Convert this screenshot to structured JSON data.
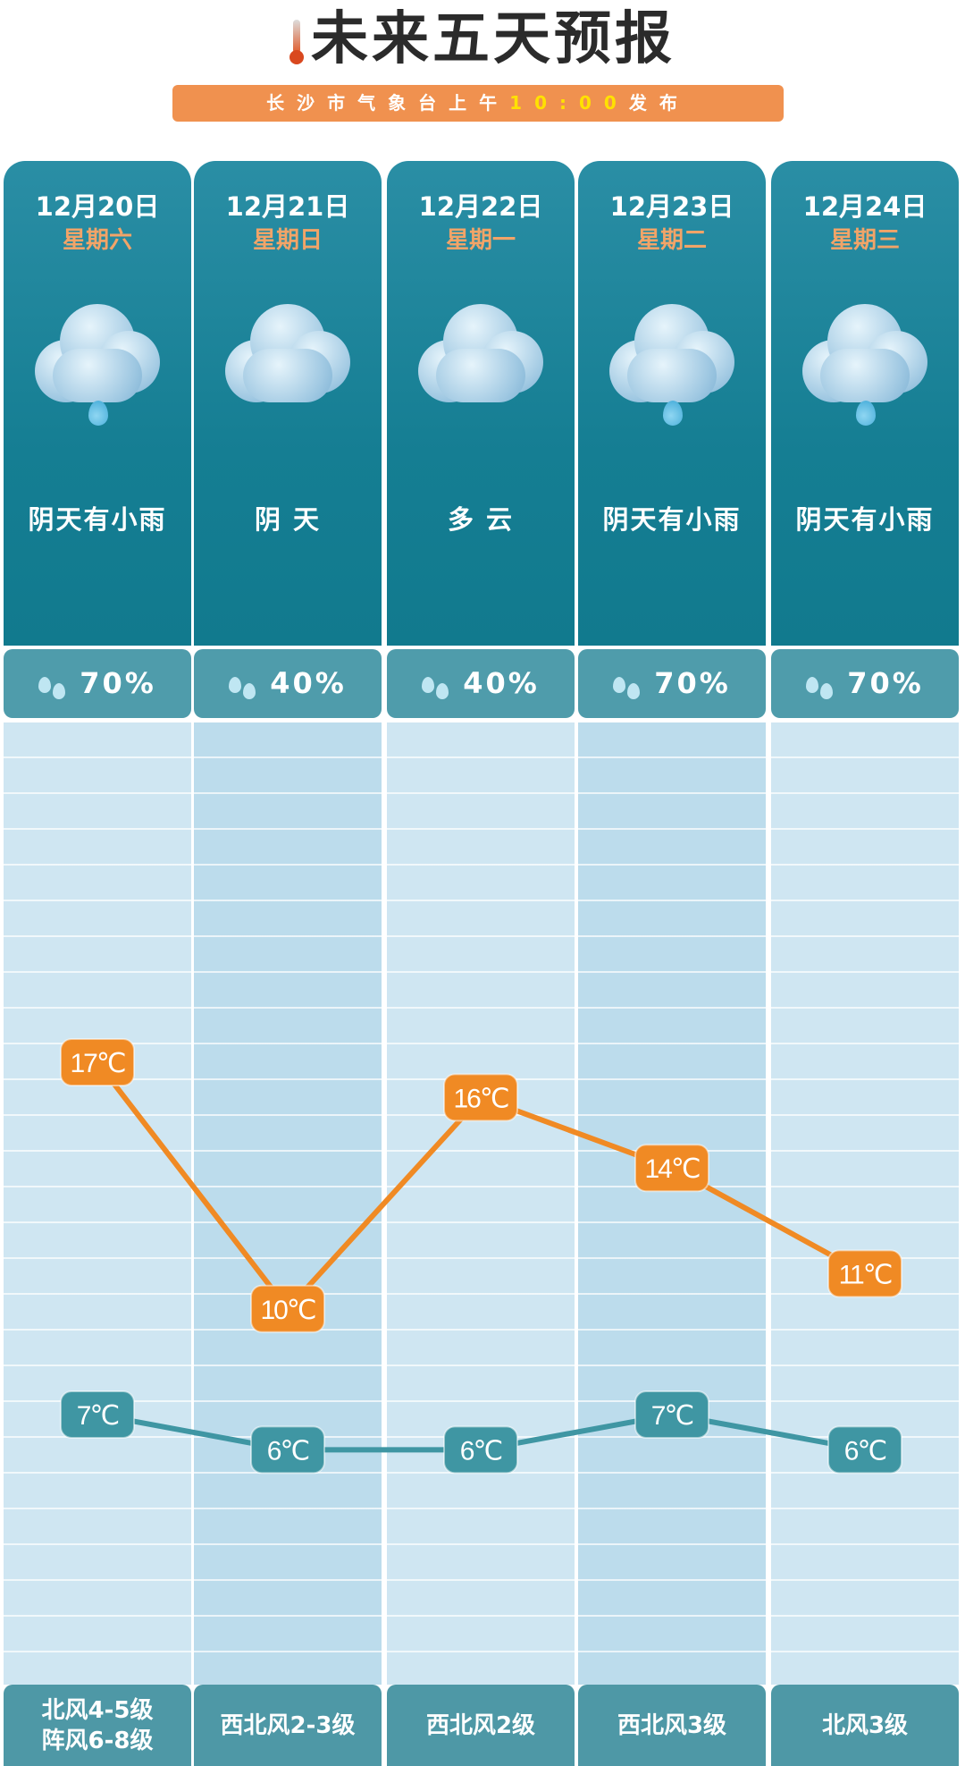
{
  "title": "未来五天预报",
  "subtitle": {
    "prefix": "长沙市气象台上午",
    "time": "10:00",
    "suffix": "发布"
  },
  "days": [
    {
      "date": "12月20日",
      "weekday": "星期六",
      "weather": "阴天有小雨",
      "icon": "cloud-rain-icon",
      "rain_chance": "70%",
      "high": "17℃",
      "low": "7℃",
      "wind": "北风4-5级\n阵风6-8级"
    },
    {
      "date": "12月21日",
      "weekday": "星期日",
      "weather": "阴 天",
      "icon": "cloud-icon",
      "rain_chance": "40%",
      "high": "10℃",
      "low": "6℃",
      "wind": "西北风2-3级"
    },
    {
      "date": "12月22日",
      "weekday": "星期一",
      "weather": "多 云",
      "icon": "cloud-icon",
      "rain_chance": "40%",
      "high": "16℃",
      "low": "6℃",
      "wind": "西北风2级"
    },
    {
      "date": "12月23日",
      "weekday": "星期二",
      "weather": "阴天有小雨",
      "icon": "cloud-rain-icon",
      "rain_chance": "70%",
      "high": "14℃",
      "low": "7℃",
      "wind": "西北风3级"
    },
    {
      "date": "12月24日",
      "weekday": "星期三",
      "weather": "阴天有小雨",
      "icon": "cloud-rain-icon",
      "rain_chance": "70%",
      "high": "11℃",
      "low": "6℃",
      "wind": "北风3级"
    }
  ],
  "chart_data": {
    "type": "line",
    "categories": [
      "12月20日",
      "12月21日",
      "12月22日",
      "12月23日",
      "12月24日"
    ],
    "series": [
      {
        "values": [
          17,
          10,
          16,
          14,
          11
        ],
        "color": "#f08a24"
      },
      {
        "values": [
          7,
          6,
          6,
          7,
          6
        ],
        "color": "#3f96a3"
      }
    ],
    "unit": "℃"
  },
  "colors": {
    "header": "#157e93",
    "accent": "#f0914f",
    "high": "#f08a24",
    "low": "#3f96a3"
  }
}
